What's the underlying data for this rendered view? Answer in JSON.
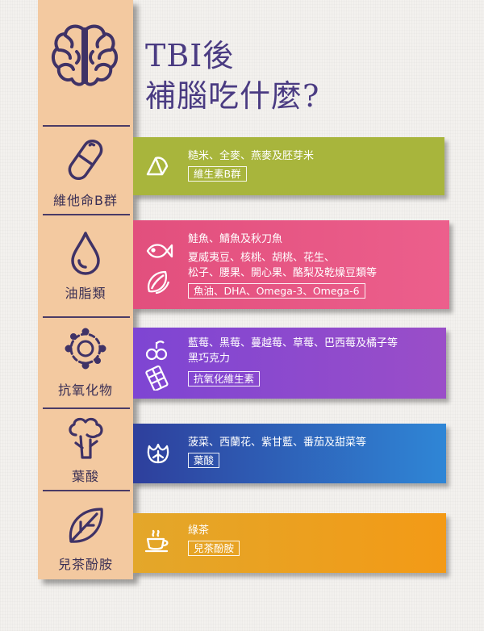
{
  "title": {
    "line1": "TBI後",
    "line2": "補腦吃什麼?"
  },
  "categories": [
    {
      "label": "維他命B群",
      "icon": "capsule-icon"
    },
    {
      "label": "油脂類",
      "icon": "oil-drop-icon"
    },
    {
      "label": "抗氧化物",
      "icon": "antioxidant-icon"
    },
    {
      "label": "葉酸",
      "icon": "broccoli-icon"
    },
    {
      "label": "兒茶酚胺",
      "icon": "leaf-icon"
    }
  ],
  "bands": [
    {
      "lines": [
        "糙米、全麥、燕麥及胚芽米"
      ],
      "tag": "維生素B群",
      "icons": [
        "grain-icon"
      ],
      "color": "#a8b53c"
    },
    {
      "lines": [
        "鮭魚、鯖魚及秋刀魚",
        "夏威夷豆、核桃、胡桃、花生、",
        "松子、腰果、開心果、酪梨及乾燥豆類等"
      ],
      "tag": "魚油、DHA、Omega-3、Omega-6",
      "icons": [
        "fish-icon",
        "nuts-icon"
      ],
      "color": "#e24f7d"
    },
    {
      "lines": [
        "藍莓、黑莓、蔓越莓、草莓、巴西莓及橘子等",
        "黑巧克力"
      ],
      "tag": "抗氧化維生素",
      "icons": [
        "berries-icon",
        "chocolate-icon"
      ],
      "color": "#7e45d3"
    },
    {
      "lines": [
        "菠菜、西蘭花、紫甘藍、番茄及甜菜等"
      ],
      "tag": "葉酸",
      "icons": [
        "vegetable-icon"
      ],
      "color": "#2f6cc0"
    },
    {
      "lines": [
        "綠茶"
      ],
      "tag": "兒茶酚胺",
      "icons": [
        "tea-cup-icon"
      ],
      "color": "#f39a16"
    }
  ]
}
